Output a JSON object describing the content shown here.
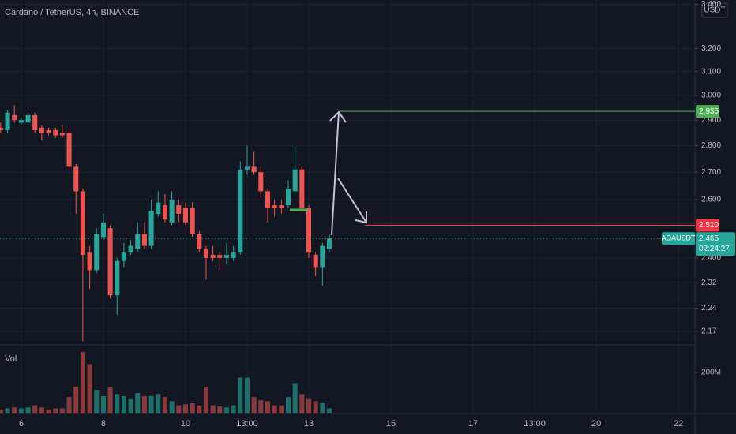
{
  "chart_data": {
    "type": "candlestick",
    "title": "Cardano / TetherUS, 4h, BINANCE",
    "currency": "USDT",
    "up_color": "#26a69a",
    "down_color": "#ef5350",
    "x": [
      0,
      1,
      2,
      3,
      4,
      5,
      6,
      7,
      8,
      9,
      10,
      11,
      12,
      13,
      14,
      15,
      16,
      17,
      18,
      19,
      20,
      21,
      22,
      23,
      24,
      25,
      26,
      27,
      28,
      29,
      30,
      31,
      32,
      33,
      34,
      35,
      36,
      37,
      38,
      39,
      40,
      41,
      42,
      43,
      44,
      45,
      46,
      47,
      48
    ],
    "open": [
      2.87,
      2.86,
      2.92,
      2.89,
      2.89,
      2.92,
      2.87,
      2.86,
      2.86,
      2.85,
      2.85,
      2.72,
      2.63,
      2.42,
      2.36,
      2.47,
      2.5,
      2.28,
      2.39,
      2.42,
      2.43,
      2.48,
      2.44,
      2.55,
      2.58,
      2.52,
      2.58,
      2.57,
      2.57,
      2.48,
      2.43,
      2.41,
      2.41,
      2.4,
      2.4,
      2.42,
      2.71,
      2.72,
      2.7,
      2.63,
      2.58,
      2.58,
      2.58,
      2.63,
      2.71,
      2.57,
      2.41,
      2.37,
      2.43
    ],
    "high": [
      2.89,
      2.94,
      2.96,
      2.91,
      2.93,
      2.93,
      2.88,
      2.87,
      2.87,
      2.88,
      2.87,
      2.73,
      2.64,
      2.44,
      2.5,
      2.55,
      2.51,
      2.4,
      2.45,
      2.46,
      2.52,
      2.52,
      2.6,
      2.63,
      2.62,
      2.63,
      2.6,
      2.59,
      2.59,
      2.49,
      2.44,
      2.44,
      2.42,
      2.45,
      2.44,
      2.74,
      2.8,
      2.78,
      2.72,
      2.64,
      2.6,
      2.6,
      2.67,
      2.8,
      2.72,
      2.58,
      2.42,
      2.45,
      2.48
    ],
    "low": [
      2.85,
      2.85,
      2.89,
      2.88,
      2.88,
      2.85,
      2.82,
      2.84,
      2.83,
      2.83,
      2.71,
      2.55,
      2.14,
      2.3,
      2.35,
      2.46,
      2.27,
      2.22,
      2.37,
      2.41,
      2.42,
      2.43,
      2.43,
      2.54,
      2.52,
      2.51,
      2.52,
      2.51,
      2.47,
      2.42,
      2.33,
      2.39,
      2.36,
      2.38,
      2.39,
      2.41,
      2.69,
      2.69,
      2.61,
      2.52,
      2.54,
      2.55,
      2.57,
      2.62,
      2.56,
      2.4,
      2.34,
      2.31,
      2.42
    ],
    "close": [
      2.86,
      2.93,
      2.9,
      2.9,
      2.92,
      2.86,
      2.85,
      2.85,
      2.84,
      2.84,
      2.72,
      2.63,
      2.41,
      2.36,
      2.48,
      2.52,
      2.28,
      2.39,
      2.42,
      2.44,
      2.48,
      2.44,
      2.56,
      2.59,
      2.53,
      2.6,
      2.55,
      2.52,
      2.48,
      2.43,
      2.4,
      2.4,
      2.4,
      2.41,
      2.42,
      2.71,
      2.72,
      2.7,
      2.63,
      2.57,
      2.57,
      2.57,
      2.64,
      2.71,
      2.57,
      2.42,
      2.37,
      2.44,
      2.465
    ],
    "volume_label": "Vol",
    "volume": [
      20,
      25,
      30,
      25,
      30,
      40,
      30,
      20,
      25,
      25,
      80,
      130,
      300,
      240,
      115,
      85,
      130,
      95,
      85,
      70,
      100,
      85,
      85,
      95,
      80,
      60,
      40,
      45,
      50,
      40,
      130,
      40,
      35,
      30,
      40,
      175,
      175,
      80,
      65,
      60,
      40,
      40,
      80,
      145,
      95,
      70,
      60,
      50,
      25
    ],
    "volume_ylim": [
      0,
      323
    ],
    "volume_yticks": [
      {
        "value": 200,
        "label": "200M"
      }
    ],
    "log_scale": true,
    "grid": true,
    "ylim": [
      2.13,
      3.42
    ],
    "yticks": [
      {
        "value": 3.4,
        "label": "3.400"
      },
      {
        "value": 3.2,
        "label": "3.200"
      },
      {
        "value": 3.1,
        "label": "3.100"
      },
      {
        "value": 3.0,
        "label": "3.000"
      },
      {
        "value": 2.9,
        "label": "2.900"
      },
      {
        "value": 2.8,
        "label": "2.800"
      },
      {
        "value": 2.7,
        "label": "2.700"
      },
      {
        "value": 2.6,
        "label": "2.600"
      },
      {
        "value": 2.4,
        "label": "2.400"
      },
      2.32,
      2.24,
      2.17
    ],
    "xlim": [
      -0.1,
      101.4
    ],
    "xticks": [
      {
        "value": 3,
        "label": "6"
      },
      {
        "value": 15,
        "label": "8"
      },
      {
        "value": 27,
        "label": "10"
      },
      {
        "value": 36,
        "label": "13:00"
      },
      {
        "value": 45,
        "label": "13"
      },
      {
        "value": 57,
        "label": "15"
      },
      {
        "value": 69,
        "label": "17"
      },
      {
        "value": 78,
        "label": "13:00"
      },
      {
        "value": 87,
        "label": "20"
      },
      {
        "value": 99,
        "label": "22"
      }
    ],
    "levels": [
      {
        "value": 2.935,
        "label": "2.935",
        "color": "#4caf50"
      },
      {
        "value": 2.51,
        "label": "2.510",
        "color": "#f23645"
      }
    ],
    "last": {
      "symbol": "ADAUSDT",
      "value": 2.465,
      "label": "2.465",
      "countdown": "02:24:27",
      "color": "#26a69a"
    }
  }
}
